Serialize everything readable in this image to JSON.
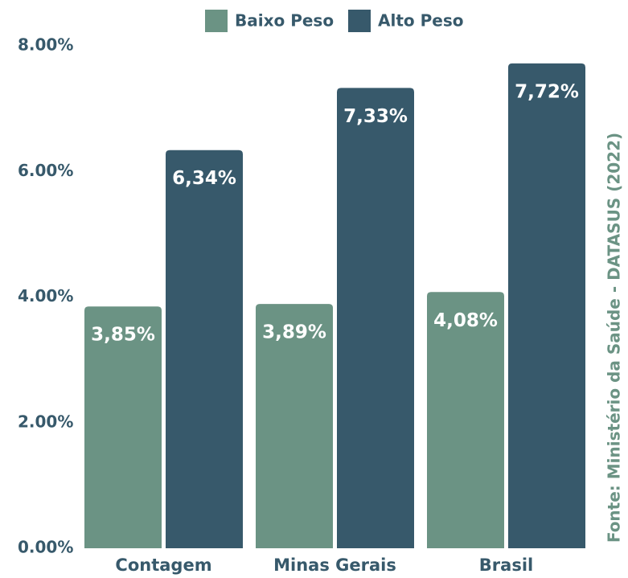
{
  "chart_data": {
    "type": "bar",
    "categories": [
      "Contagem",
      "Minas Gerais",
      "Brasil"
    ],
    "series": [
      {
        "name": "Baixo Peso",
        "color": "#6b9384",
        "values": [
          3.85,
          3.89,
          4.08
        ],
        "value_labels": [
          "3,85%",
          "3,89%",
          "4,08%"
        ]
      },
      {
        "name": "Alto Peso",
        "color": "#37596b",
        "values": [
          6.34,
          7.33,
          7.72
        ],
        "value_labels": [
          "6,34%",
          "7,33%",
          "7,72%"
        ]
      }
    ],
    "ylim": [
      0,
      8
    ],
    "yticks": [
      {
        "value": 0,
        "label": "0.00%"
      },
      {
        "value": 2,
        "label": "2.00%"
      },
      {
        "value": 4,
        "label": "4.00%"
      },
      {
        "value": 6,
        "label": "6.00%"
      },
      {
        "value": 8,
        "label": "8.00%"
      }
    ],
    "grid": false,
    "legend": "top",
    "source": "Fonte: Ministério da Saúde - DATASUS (2022)"
  }
}
